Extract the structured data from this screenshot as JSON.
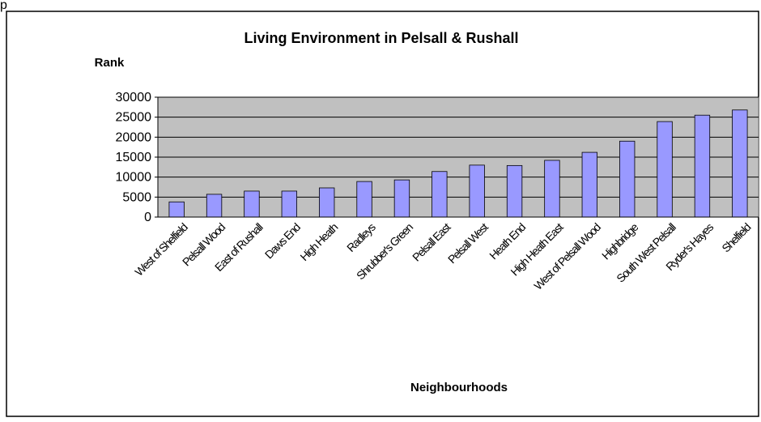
{
  "caption": "p",
  "chart_data": {
    "type": "bar",
    "title": "Living Environment  in Pelsall & Rushall",
    "y_label": "Rank",
    "x_label": "Neighbourhoods",
    "categories": [
      "West of Shelfield",
      "Pelsall Wood",
      "East of Rushall",
      "Daws End",
      "High Heath",
      "Radleys",
      "Shrubber's Green",
      "Pelsall East",
      "Pelsall West",
      "Heath End",
      "High Heath East",
      "West of Pelsall Wood",
      "Highbridge",
      "South West Pelsall",
      "Ryder's Hayes",
      "Shelfield"
    ],
    "values": [
      3800,
      5700,
      6500,
      6500,
      7300,
      8900,
      9300,
      11400,
      13000,
      12900,
      14200,
      16200,
      19000,
      23900,
      25500,
      26800
    ],
    "color": "#9999ff",
    "ylim": [
      0,
      30000
    ],
    "yticks": [
      0,
      5000,
      10000,
      15000,
      20000,
      25000,
      30000
    ],
    "grid": true
  }
}
